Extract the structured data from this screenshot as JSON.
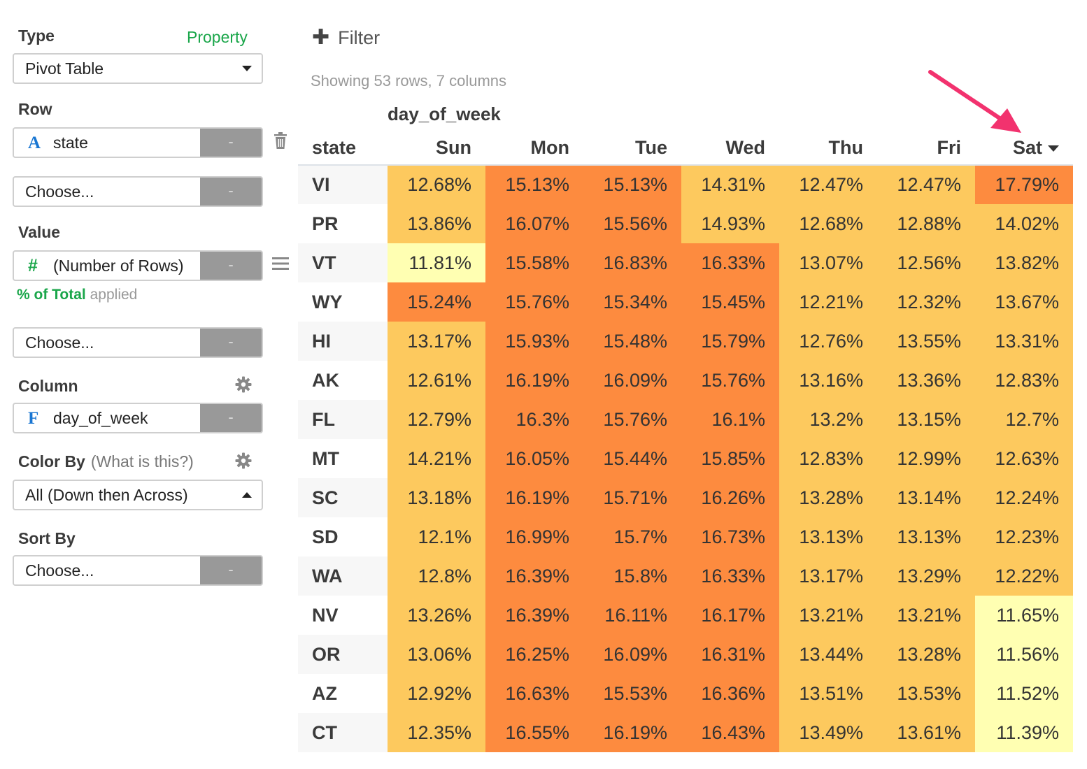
{
  "sidebar": {
    "type_label": "Type",
    "property_link": "Property",
    "type_value": "Pivot Table",
    "row_label": "Row",
    "row_field": {
      "type_icon": "A",
      "name": "state",
      "button": "-"
    },
    "row_choose": {
      "placeholder": "Choose...",
      "button": "-"
    },
    "value_label": "Value",
    "value_field": {
      "type_icon": "#",
      "name": "(Number of Rows)",
      "button": "-"
    },
    "value_applied": {
      "highlight": "% of Total",
      "suffix": "applied"
    },
    "value_choose": {
      "placeholder": "Choose...",
      "button": "-"
    },
    "column_label": "Column",
    "column_field": {
      "type_icon": "F",
      "name": "day_of_week",
      "button": "-"
    },
    "colorby_label": "Color By",
    "colorby_hint": "(What is this?)",
    "colorby_value": "All (Down then Across)",
    "sortby_label": "Sort By",
    "sortby_choose": {
      "placeholder": "Choose...",
      "button": "-"
    },
    "icons": {
      "trash": "trash-icon",
      "menu": "menu-icon",
      "gear": "gear-icon",
      "dropdown": "chevron-down-icon"
    }
  },
  "toolbar": {
    "filter_label": "Filter",
    "filter_icon": "plus-icon"
  },
  "summary": "Showing 53 rows, 7 columns",
  "pivot": {
    "column_group": "day_of_week",
    "row_header": "state",
    "columns": [
      "Sun",
      "Mon",
      "Tue",
      "Wed",
      "Thu",
      "Fri",
      "Sat"
    ],
    "sorted_column": "Sat",
    "rows": [
      {
        "state": "VI",
        "values": [
          "12.68%",
          "15.13%",
          "15.13%",
          "14.31%",
          "12.47%",
          "12.47%",
          "17.79%"
        ],
        "colors": [
          "#fdc95e",
          "#fd8b3f",
          "#fd8b3f",
          "#fdc95e",
          "#fdc95e",
          "#fdc95e",
          "#fd8b3f"
        ]
      },
      {
        "state": "PR",
        "values": [
          "13.86%",
          "16.07%",
          "15.56%",
          "14.93%",
          "12.68%",
          "12.88%",
          "14.02%"
        ],
        "colors": [
          "#fdc95e",
          "#fd8b3f",
          "#fd8b3f",
          "#fdc95e",
          "#fdc95e",
          "#fdc95e",
          "#fdc95e"
        ]
      },
      {
        "state": "VT",
        "values": [
          "11.81%",
          "15.58%",
          "16.83%",
          "16.33%",
          "13.07%",
          "12.56%",
          "13.82%"
        ],
        "colors": [
          "#ffffb2",
          "#fd8b3f",
          "#fd8b3f",
          "#fd8b3f",
          "#fdc95e",
          "#fdc95e",
          "#fdc95e"
        ]
      },
      {
        "state": "WY",
        "values": [
          "15.24%",
          "15.76%",
          "15.34%",
          "15.45%",
          "12.21%",
          "12.32%",
          "13.67%"
        ],
        "colors": [
          "#fd8b3f",
          "#fd8b3f",
          "#fd8b3f",
          "#fd8b3f",
          "#fdc95e",
          "#fdc95e",
          "#fdc95e"
        ]
      },
      {
        "state": "HI",
        "values": [
          "13.17%",
          "15.93%",
          "15.48%",
          "15.79%",
          "12.76%",
          "13.55%",
          "13.31%"
        ],
        "colors": [
          "#fdc95e",
          "#fd8b3f",
          "#fd8b3f",
          "#fd8b3f",
          "#fdc95e",
          "#fdc95e",
          "#fdc95e"
        ]
      },
      {
        "state": "AK",
        "values": [
          "12.61%",
          "16.19%",
          "16.09%",
          "15.76%",
          "13.16%",
          "13.36%",
          "12.83%"
        ],
        "colors": [
          "#fdc95e",
          "#fd8b3f",
          "#fd8b3f",
          "#fd8b3f",
          "#fdc95e",
          "#fdc95e",
          "#fdc95e"
        ]
      },
      {
        "state": "FL",
        "values": [
          "12.79%",
          "16.3%",
          "15.76%",
          "16.1%",
          "13.2%",
          "13.15%",
          "12.7%"
        ],
        "colors": [
          "#fdc95e",
          "#fd8b3f",
          "#fd8b3f",
          "#fd8b3f",
          "#fdc95e",
          "#fdc95e",
          "#fdc95e"
        ]
      },
      {
        "state": "MT",
        "values": [
          "14.21%",
          "16.05%",
          "15.44%",
          "15.85%",
          "12.83%",
          "12.99%",
          "12.63%"
        ],
        "colors": [
          "#fdc95e",
          "#fd8b3f",
          "#fd8b3f",
          "#fd8b3f",
          "#fdc95e",
          "#fdc95e",
          "#fdc95e"
        ]
      },
      {
        "state": "SC",
        "values": [
          "13.18%",
          "16.19%",
          "15.71%",
          "16.26%",
          "13.28%",
          "13.14%",
          "12.24%"
        ],
        "colors": [
          "#fdc95e",
          "#fd8b3f",
          "#fd8b3f",
          "#fd8b3f",
          "#fdc95e",
          "#fdc95e",
          "#fdc95e"
        ]
      },
      {
        "state": "SD",
        "values": [
          "12.1%",
          "16.99%",
          "15.7%",
          "16.73%",
          "13.13%",
          "13.13%",
          "12.23%"
        ],
        "colors": [
          "#fdc95e",
          "#fd8b3f",
          "#fd8b3f",
          "#fd8b3f",
          "#fdc95e",
          "#fdc95e",
          "#fdc95e"
        ]
      },
      {
        "state": "WA",
        "values": [
          "12.8%",
          "16.39%",
          "15.8%",
          "16.33%",
          "13.17%",
          "13.29%",
          "12.22%"
        ],
        "colors": [
          "#fdc95e",
          "#fd8b3f",
          "#fd8b3f",
          "#fd8b3f",
          "#fdc95e",
          "#fdc95e",
          "#fdc95e"
        ]
      },
      {
        "state": "NV",
        "values": [
          "13.26%",
          "16.39%",
          "16.11%",
          "16.17%",
          "13.21%",
          "13.21%",
          "11.65%"
        ],
        "colors": [
          "#fdc95e",
          "#fd8b3f",
          "#fd8b3f",
          "#fd8b3f",
          "#fdc95e",
          "#fdc95e",
          "#ffffb2"
        ]
      },
      {
        "state": "OR",
        "values": [
          "13.06%",
          "16.25%",
          "16.09%",
          "16.31%",
          "13.44%",
          "13.28%",
          "11.56%"
        ],
        "colors": [
          "#fdc95e",
          "#fd8b3f",
          "#fd8b3f",
          "#fd8b3f",
          "#fdc95e",
          "#fdc95e",
          "#ffffb2"
        ]
      },
      {
        "state": "AZ",
        "values": [
          "12.92%",
          "16.63%",
          "15.53%",
          "16.36%",
          "13.51%",
          "13.53%",
          "11.52%"
        ],
        "colors": [
          "#fdc95e",
          "#fd8b3f",
          "#fd8b3f",
          "#fd8b3f",
          "#fdc95e",
          "#fdc95e",
          "#ffffb2"
        ]
      },
      {
        "state": "CT",
        "values": [
          "12.35%",
          "16.55%",
          "16.19%",
          "16.43%",
          "13.49%",
          "13.61%",
          "11.39%"
        ],
        "colors": [
          "#fdc95e",
          "#fd8b3f",
          "#fd8b3f",
          "#fd8b3f",
          "#fdc95e",
          "#fdc95e",
          "#ffffb2"
        ]
      }
    ]
  },
  "annotation": {
    "arrow_color": "#f2326e",
    "arrow_icon": "arrow-annotation-icon"
  }
}
